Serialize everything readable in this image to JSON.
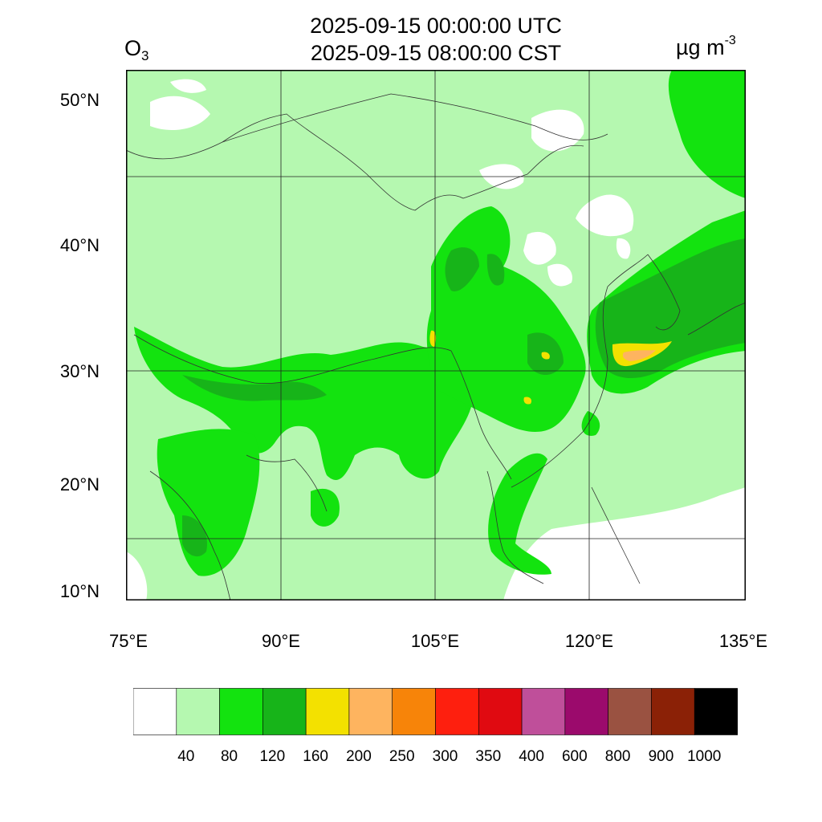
{
  "header": {
    "title_utc": "2025-09-15 00:00:00 UTC",
    "title_local": "2025-09-15 08:00:00 CST",
    "species_base": "O",
    "species_sub": "3",
    "units_base": "µg m",
    "units_exp": "-3"
  },
  "axes": {
    "lat_labels": [
      "50°N",
      "40°N",
      "30°N",
      "20°N",
      "10°N"
    ],
    "lon_labels": [
      "75°E",
      "90°E",
      "105°E",
      "120°E",
      "135°E"
    ]
  },
  "colorbar": {
    "labels": [
      "40",
      "80",
      "120",
      "160",
      "200",
      "250",
      "300",
      "350",
      "400",
      "600",
      "800",
      "900",
      "1000"
    ],
    "colors": [
      "#ffffff",
      "#b5f8b0",
      "#13e30f",
      "#17b419",
      "#f3e100",
      "#feb45f",
      "#f78409",
      "#fe1f0e",
      "#e00a11",
      "#bf4f9a",
      "#9b0a6c",
      "#9a5241",
      "#8b2106",
      "#000000"
    ]
  },
  "map_colors": {
    "bg": "#b5f8b0",
    "none": "#ffffff",
    "c80": "#13e30f",
    "c120": "#17b419",
    "c160": "#f3e100",
    "c200": "#feb45f",
    "border": "#333333",
    "grid": "#222222"
  }
}
